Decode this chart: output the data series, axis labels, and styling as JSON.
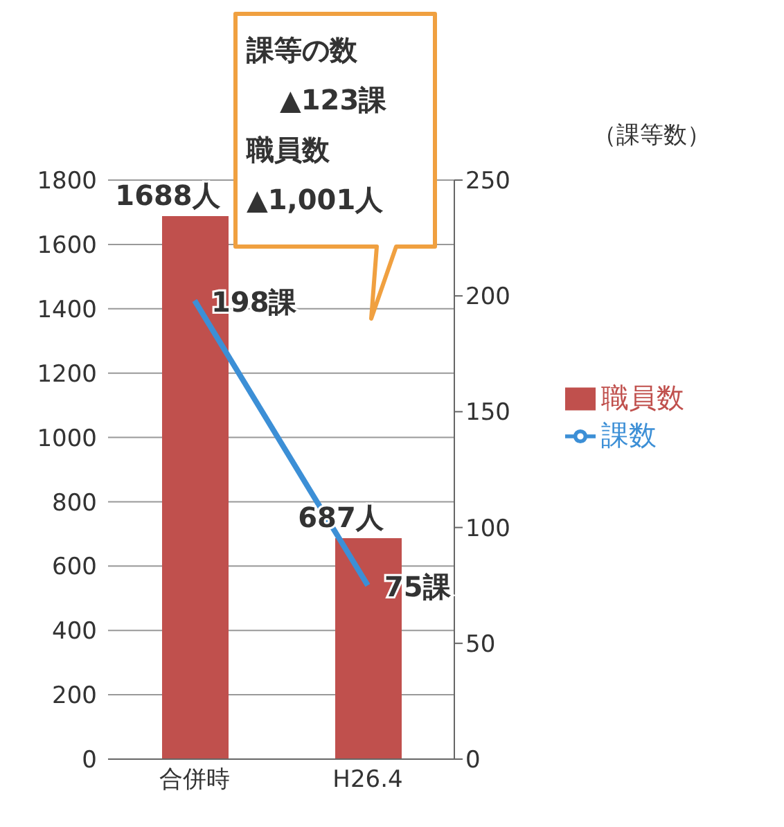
{
  "chart_data": {
    "type": "bar",
    "categories": [
      "合併時",
      "H26.4"
    ],
    "series": [
      {
        "name": "職員数",
        "color": "#c0504d",
        "values": [
          1688,
          687
        ],
        "value_labels": [
          "1688人",
          "687人"
        ]
      },
      {
        "name": "課数",
        "type": "line",
        "axis": "y2",
        "color": "#3c8fd6",
        "values": [
          198,
          75
        ],
        "value_labels": [
          "198課",
          "75課"
        ]
      }
    ],
    "ylim": [
      0,
      1800
    ],
    "yticks": [
      0,
      200,
      400,
      600,
      800,
      1000,
      1200,
      1400,
      1600,
      1800
    ],
    "y2lim": [
      0,
      250
    ],
    "y2ticks": [
      0,
      50,
      100,
      150,
      200,
      250
    ],
    "y2label": "（課等数）",
    "grid": "y",
    "legend": "right",
    "marker": "none",
    "annotations": [
      "課等の数",
      "▲123課",
      "職員数",
      "▲1,001人"
    ]
  }
}
